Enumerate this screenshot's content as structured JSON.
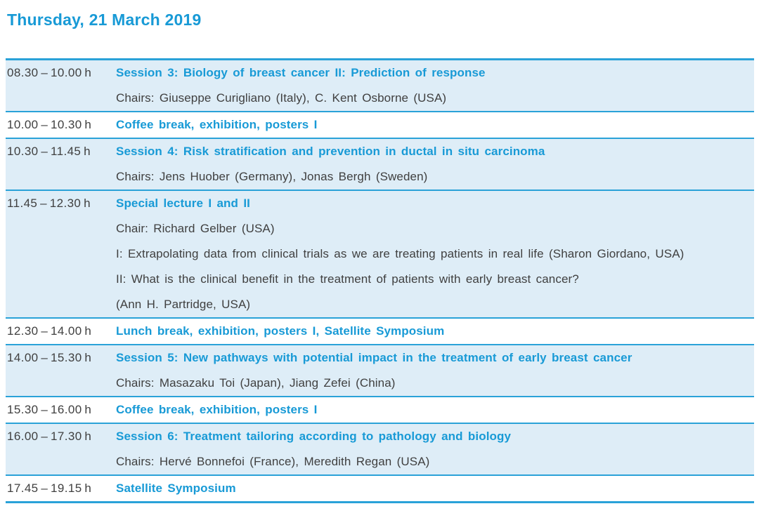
{
  "header": {
    "title": "Thursday, 21 March 2019"
  },
  "colors": {
    "accent_cyan": "#189ad6",
    "rule_blue": "#2aa2d8",
    "row_highlight_blue": "#deedf7",
    "text_dark": "#404040"
  },
  "schedule": {
    "rows": [
      {
        "time": "08.30 – 10.00 h",
        "highlighted": true,
        "lines": [
          {
            "text": "Session 3: Biology of breast cancer II: Prediction of response",
            "emphasis": true
          },
          {
            "text": "Chairs: Giuseppe Curigliano (Italy), C. Kent Osborne (USA)",
            "emphasis": false
          }
        ]
      },
      {
        "time": "10.00 – 10.30 h",
        "highlighted": false,
        "lines": [
          {
            "text": "Coffee break, exhibition, posters I",
            "emphasis": true
          }
        ]
      },
      {
        "time": "10.30 – 11.45 h",
        "highlighted": true,
        "lines": [
          {
            "text": "Session 4: Risk stratification and prevention in ductal in situ carcinoma",
            "emphasis": true
          },
          {
            "text": "Chairs: Jens Huober (Germany), Jonas Bergh (Sweden)",
            "emphasis": false
          }
        ]
      },
      {
        "time": "11.45 – 12.30 h",
        "highlighted": true,
        "lines": [
          {
            "text": "Special lecture I and II",
            "emphasis": true
          },
          {
            "text": "Chair: Richard Gelber (USA)",
            "emphasis": false
          },
          {
            "text": "I: Extrapolating data from clinical trials as we are treating patients in real life (Sharon Giordano, USA)",
            "emphasis": false
          },
          {
            "text": "II: What is the clinical benefit in the treatment of patients with early breast cancer?",
            "emphasis": false
          },
          {
            "text": "(Ann H. Partridge, USA)",
            "emphasis": false
          }
        ]
      },
      {
        "time": "12.30 – 14.00 h",
        "highlighted": false,
        "lines": [
          {
            "text": "Lunch break, exhibition, posters I, Satellite Symposium",
            "emphasis": true
          }
        ]
      },
      {
        "time": "14.00 – 15.30 h",
        "highlighted": true,
        "lines": [
          {
            "text": "Session 5: New pathways with potential impact in the treatment of early breast cancer",
            "emphasis": true
          },
          {
            "text": "Chairs: Masazaku Toi (Japan), Jiang Zefei (China)",
            "emphasis": false
          }
        ]
      },
      {
        "time": "15.30 – 16.00 h",
        "highlighted": false,
        "lines": [
          {
            "text": "Coffee break, exhibition, posters I",
            "emphasis": true
          }
        ]
      },
      {
        "time": "16.00 – 17.30 h",
        "highlighted": true,
        "lines": [
          {
            "text": "Session 6: Treatment tailoring according to pathology and biology",
            "emphasis": true
          },
          {
            "text": "Chairs: Hervé Bonnefoi (France), Meredith Regan (USA)",
            "emphasis": false
          }
        ]
      },
      {
        "time": "17.45 – 19.15 h",
        "highlighted": false,
        "lines": [
          {
            "text": "Satellite Symposium",
            "emphasis": true
          }
        ]
      }
    ]
  }
}
